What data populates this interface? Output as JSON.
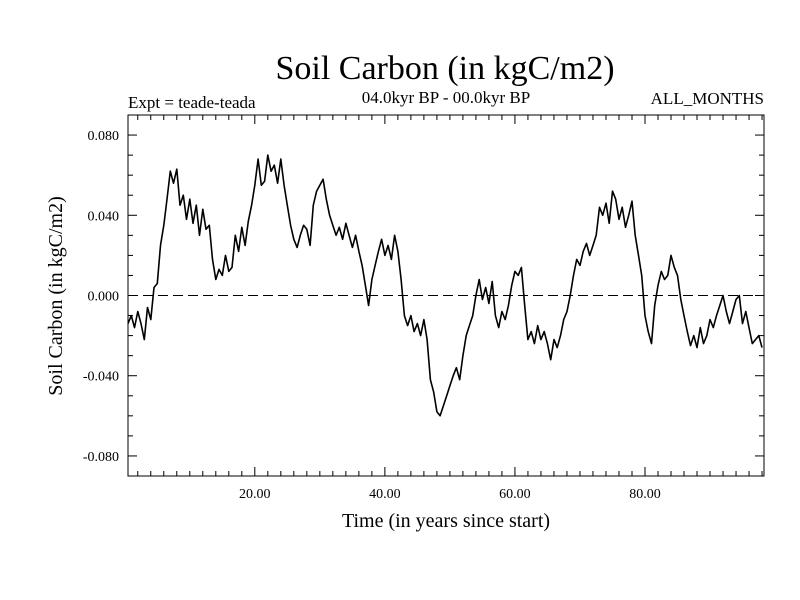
{
  "chart_data": {
    "type": "line",
    "title": "Soil Carbon (in kgC/m2)",
    "subtitle": "04.0kyr BP - 00.0kyr BP",
    "experiment": "Expt = teade-teada",
    "period": "ALL_MONTHS",
    "xlabel": "Time (in years since start)",
    "ylabel": "Soil Carbon (in kgC/m2)",
    "xlim": [
      0.5,
      98.3
    ],
    "ylim": [
      -0.09,
      0.09
    ],
    "x_ticks": [
      {
        "value": 20,
        "label": "20.00"
      },
      {
        "value": 40,
        "label": "40.00"
      },
      {
        "value": 60,
        "label": "60.00"
      },
      {
        "value": 80,
        "label": "80.00"
      }
    ],
    "y_ticks": [
      {
        "value": 0.08,
        "label": "0.080"
      },
      {
        "value": 0.04,
        "label": "0.040"
      },
      {
        "value": 0.0,
        "label": "0.000"
      },
      {
        "value": -0.04,
        "label": "-0.040"
      },
      {
        "value": -0.08,
        "label": "-0.080"
      }
    ],
    "zero_line": true,
    "series": [
      {
        "name": "Soil Carbon",
        "color": "#000000",
        "points": [
          [
            0.5,
            -0.014
          ],
          [
            1.0,
            -0.01
          ],
          [
            1.5,
            -0.016
          ],
          [
            2.0,
            -0.008
          ],
          [
            2.5,
            -0.014
          ],
          [
            3.0,
            -0.022
          ],
          [
            3.5,
            -0.006
          ],
          [
            4.0,
            -0.012
          ],
          [
            4.5,
            0.004
          ],
          [
            5.0,
            0.006
          ],
          [
            5.5,
            0.025
          ],
          [
            6.0,
            0.035
          ],
          [
            6.5,
            0.048
          ],
          [
            7.0,
            0.062
          ],
          [
            7.5,
            0.056
          ],
          [
            8.0,
            0.063
          ],
          [
            8.5,
            0.045
          ],
          [
            9.0,
            0.05
          ],
          [
            9.5,
            0.038
          ],
          [
            10.0,
            0.048
          ],
          [
            10.5,
            0.036
          ],
          [
            11.0,
            0.045
          ],
          [
            11.5,
            0.03
          ],
          [
            12.0,
            0.043
          ],
          [
            12.5,
            0.033
          ],
          [
            13.0,
            0.035
          ],
          [
            13.5,
            0.018
          ],
          [
            14.0,
            0.008
          ],
          [
            14.5,
            0.013
          ],
          [
            15.0,
            0.01
          ],
          [
            15.5,
            0.02
          ],
          [
            16.0,
            0.012
          ],
          [
            16.5,
            0.014
          ],
          [
            17.0,
            0.03
          ],
          [
            17.5,
            0.022
          ],
          [
            18.0,
            0.034
          ],
          [
            18.5,
            0.025
          ],
          [
            19.0,
            0.037
          ],
          [
            19.5,
            0.045
          ],
          [
            20.0,
            0.055
          ],
          [
            20.5,
            0.068
          ],
          [
            21.0,
            0.055
          ],
          [
            21.5,
            0.057
          ],
          [
            22.0,
            0.07
          ],
          [
            22.5,
            0.062
          ],
          [
            23.0,
            0.065
          ],
          [
            23.5,
            0.056
          ],
          [
            24.0,
            0.068
          ],
          [
            24.5,
            0.055
          ],
          [
            25.0,
            0.045
          ],
          [
            25.5,
            0.035
          ],
          [
            26.0,
            0.028
          ],
          [
            26.5,
            0.024
          ],
          [
            27.0,
            0.03
          ],
          [
            27.5,
            0.035
          ],
          [
            28.0,
            0.033
          ],
          [
            28.5,
            0.025
          ],
          [
            29.0,
            0.045
          ],
          [
            29.5,
            0.052
          ],
          [
            30.0,
            0.055
          ],
          [
            30.5,
            0.058
          ],
          [
            31.0,
            0.048
          ],
          [
            31.5,
            0.04
          ],
          [
            32.0,
            0.035
          ],
          [
            32.5,
            0.03
          ],
          [
            33.0,
            0.034
          ],
          [
            33.5,
            0.028
          ],
          [
            34.0,
            0.036
          ],
          [
            34.5,
            0.03
          ],
          [
            35.0,
            0.024
          ],
          [
            35.5,
            0.03
          ],
          [
            36.0,
            0.022
          ],
          [
            36.5,
            0.015
          ],
          [
            37.0,
            0.005
          ],
          [
            37.5,
            -0.005
          ],
          [
            38.0,
            0.008
          ],
          [
            38.5,
            0.015
          ],
          [
            39.0,
            0.022
          ],
          [
            39.5,
            0.028
          ],
          [
            40.0,
            0.02
          ],
          [
            40.5,
            0.025
          ],
          [
            41.0,
            0.018
          ],
          [
            41.5,
            0.03
          ],
          [
            42.0,
            0.022
          ],
          [
            42.5,
            0.008
          ],
          [
            43.0,
            -0.01
          ],
          [
            43.5,
            -0.015
          ],
          [
            44.0,
            -0.01
          ],
          [
            44.5,
            -0.018
          ],
          [
            45.0,
            -0.014
          ],
          [
            45.5,
            -0.02
          ],
          [
            46.0,
            -0.012
          ],
          [
            46.5,
            -0.022
          ],
          [
            47.0,
            -0.042
          ],
          [
            47.5,
            -0.048
          ],
          [
            48.0,
            -0.058
          ],
          [
            48.5,
            -0.06
          ],
          [
            49.0,
            -0.055
          ],
          [
            49.5,
            -0.05
          ],
          [
            50.0,
            -0.045
          ],
          [
            50.5,
            -0.04
          ],
          [
            51.0,
            -0.036
          ],
          [
            51.5,
            -0.042
          ],
          [
            52.0,
            -0.03
          ],
          [
            52.5,
            -0.02
          ],
          [
            53.0,
            -0.015
          ],
          [
            53.5,
            -0.01
          ],
          [
            54.0,
            0.0
          ],
          [
            54.5,
            0.008
          ],
          [
            55.0,
            -0.002
          ],
          [
            55.5,
            0.004
          ],
          [
            56.0,
            -0.004
          ],
          [
            56.5,
            0.007
          ],
          [
            57.0,
            -0.01
          ],
          [
            57.5,
            -0.016
          ],
          [
            58.0,
            -0.008
          ],
          [
            58.5,
            -0.012
          ],
          [
            59.0,
            -0.005
          ],
          [
            59.5,
            0.005
          ],
          [
            60.0,
            0.012
          ],
          [
            60.5,
            0.01
          ],
          [
            61.0,
            0.014
          ],
          [
            61.5,
            -0.005
          ],
          [
            62.0,
            -0.022
          ],
          [
            62.5,
            -0.018
          ],
          [
            63.0,
            -0.024
          ],
          [
            63.5,
            -0.015
          ],
          [
            64.0,
            -0.022
          ],
          [
            64.5,
            -0.018
          ],
          [
            65.0,
            -0.024
          ],
          [
            65.5,
            -0.032
          ],
          [
            66.0,
            -0.022
          ],
          [
            66.5,
            -0.026
          ],
          [
            67.0,
            -0.02
          ],
          [
            67.5,
            -0.012
          ],
          [
            68.0,
            -0.008
          ],
          [
            68.5,
            0.0
          ],
          [
            69.0,
            0.01
          ],
          [
            69.5,
            0.018
          ],
          [
            70.0,
            0.015
          ],
          [
            70.5,
            0.022
          ],
          [
            71.0,
            0.026
          ],
          [
            71.5,
            0.02
          ],
          [
            72.0,
            0.025
          ],
          [
            72.5,
            0.03
          ],
          [
            73.0,
            0.044
          ],
          [
            73.5,
            0.04
          ],
          [
            74.0,
            0.046
          ],
          [
            74.5,
            0.036
          ],
          [
            75.0,
            0.052
          ],
          [
            75.5,
            0.048
          ],
          [
            76.0,
            0.038
          ],
          [
            76.5,
            0.044
          ],
          [
            77.0,
            0.034
          ],
          [
            77.5,
            0.04
          ],
          [
            78.0,
            0.047
          ],
          [
            78.5,
            0.03
          ],
          [
            79.0,
            0.02
          ],
          [
            79.5,
            0.01
          ],
          [
            80.0,
            -0.01
          ],
          [
            80.5,
            -0.018
          ],
          [
            81.0,
            -0.024
          ],
          [
            81.5,
            -0.005
          ],
          [
            82.0,
            0.005
          ],
          [
            82.5,
            0.012
          ],
          [
            83.0,
            0.008
          ],
          [
            83.5,
            0.01
          ],
          [
            84.0,
            0.02
          ],
          [
            84.5,
            0.014
          ],
          [
            85.0,
            0.01
          ],
          [
            85.5,
            -0.002
          ],
          [
            86.0,
            -0.01
          ],
          [
            86.5,
            -0.018
          ],
          [
            87.0,
            -0.025
          ],
          [
            87.5,
            -0.02
          ],
          [
            88.0,
            -0.026
          ],
          [
            88.5,
            -0.016
          ],
          [
            89.0,
            -0.024
          ],
          [
            89.5,
            -0.02
          ],
          [
            90.0,
            -0.012
          ],
          [
            90.5,
            -0.016
          ],
          [
            91.0,
            -0.01
          ],
          [
            91.5,
            -0.005
          ],
          [
            92.0,
            0.0
          ],
          [
            92.5,
            -0.008
          ],
          [
            93.0,
            -0.014
          ],
          [
            93.5,
            -0.008
          ],
          [
            94.0,
            -0.002
          ],
          [
            94.5,
            0.0
          ],
          [
            95.0,
            -0.014
          ],
          [
            95.5,
            -0.008
          ],
          [
            96.0,
            -0.016
          ],
          [
            96.5,
            -0.024
          ],
          [
            97.0,
            -0.022
          ],
          [
            97.5,
            -0.02
          ],
          [
            98.0,
            -0.026
          ]
        ]
      }
    ]
  }
}
